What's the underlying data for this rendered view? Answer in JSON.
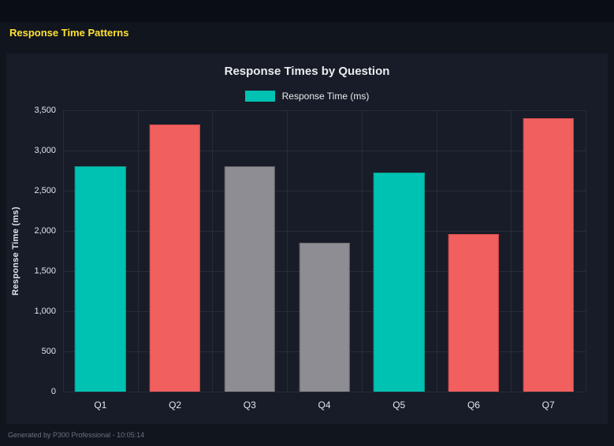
{
  "page": {
    "header_title": "Response Time Patterns",
    "footer_text": "Generated by P300 Professional - 10:05:14"
  },
  "colors": {
    "page_background": "#11151d",
    "top_strip": "#0a0d13",
    "card_background": "#171c28",
    "header_title_yellow": "#ffe135",
    "gridline": "#272c38",
    "axis_text": "#e2e5ea"
  },
  "chart_data": {
    "type": "bar",
    "title": "Response Times by Question",
    "legend": [
      {
        "label": "Response Time (ms)",
        "color": "teal"
      }
    ],
    "legend_position": "top",
    "xlabel": "",
    "ylabel": "Response Time (ms)",
    "categories": [
      "Q1",
      "Q2",
      "Q3",
      "Q4",
      "Q5",
      "Q6",
      "Q7"
    ],
    "values": [
      2800,
      3320,
      2800,
      1850,
      2730,
      1960,
      3400
    ],
    "colors": [
      "teal",
      "red",
      "gray",
      "gray",
      "teal",
      "red",
      "red"
    ],
    "palette": {
      "teal": {
        "fill": "#00c2b2",
        "border": "#0a9e92"
      },
      "red": {
        "fill": "#f25f5f",
        "border": "#d14b4b"
      },
      "gray": {
        "fill": "#8d8d93",
        "border": "#64646a"
      }
    },
    "ylim": [
      0,
      3500
    ],
    "yticks": [
      {
        "value": 0,
        "label": "0"
      },
      {
        "value": 500,
        "label": "500"
      },
      {
        "value": 1000,
        "label": "1,000"
      },
      {
        "value": 1500,
        "label": "1,500"
      },
      {
        "value": 2000,
        "label": "2,000"
      },
      {
        "value": 2500,
        "label": "2,500"
      },
      {
        "value": 3000,
        "label": "3,000"
      },
      {
        "value": 3500,
        "label": "3,500"
      }
    ],
    "grid": true
  }
}
